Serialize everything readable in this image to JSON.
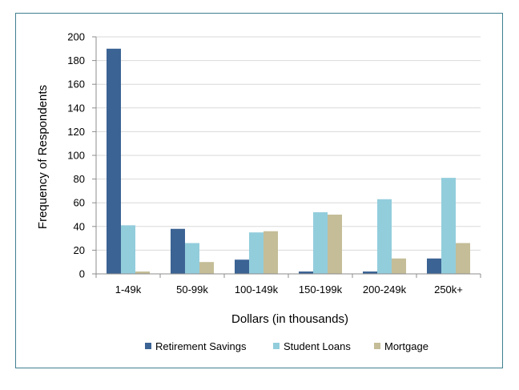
{
  "chart_data": {
    "type": "bar",
    "xlabel": "Dollars (in thousands)",
    "ylabel": "Frequency of Respondents",
    "ylim": [
      0,
      200
    ],
    "yticks": [
      0,
      20,
      40,
      60,
      80,
      100,
      120,
      140,
      160,
      180,
      200
    ],
    "grid": "horizontal",
    "legend_position": "bottom",
    "categories": [
      "1-49k",
      "50-99k",
      "100-149k",
      "150-199k",
      "200-249k",
      "250k+"
    ],
    "series": [
      {
        "name": "Retirement Savings",
        "color": "#3b6394",
        "values": [
          190,
          38,
          12,
          2,
          2,
          13
        ]
      },
      {
        "name": "Student Loans",
        "color": "#92cddc",
        "values": [
          41,
          26,
          35,
          52,
          63,
          81
        ]
      },
      {
        "name": "Mortgage",
        "color": "#c4bd97",
        "values": [
          2,
          10,
          36,
          50,
          13,
          26
        ]
      }
    ]
  }
}
